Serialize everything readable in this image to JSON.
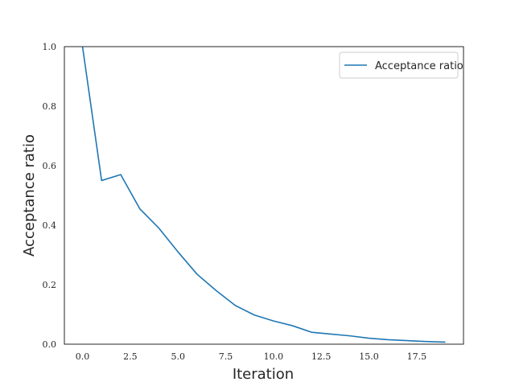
{
  "chart_data": {
    "type": "line",
    "title": "",
    "xlabel": "Iteration",
    "ylabel": "Acceptance ratio",
    "xlim": [
      -0.95,
      19.95
    ],
    "ylim": [
      0.0,
      1.0
    ],
    "xticks": [
      0.0,
      2.5,
      5.0,
      7.5,
      10.0,
      12.5,
      15.0,
      17.5
    ],
    "xtick_labels": [
      "0.0",
      "2.5",
      "5.0",
      "7.5",
      "10.0",
      "12.5",
      "15.0",
      "17.5"
    ],
    "yticks": [
      0.0,
      0.2,
      0.4,
      0.6,
      0.8,
      1.0
    ],
    "ytick_labels": [
      "0.0",
      "0.2",
      "0.4",
      "0.6",
      "0.8",
      "1.0"
    ],
    "grid": false,
    "legend_position": "top-right",
    "series": [
      {
        "name": "Acceptance ratio",
        "color": "#1f77b4",
        "x": [
          0,
          1,
          2,
          3,
          4,
          5,
          6,
          7,
          8,
          9,
          10,
          11,
          12,
          13,
          14,
          15,
          16,
          17,
          18,
          19
        ],
        "y": [
          1.0,
          0.55,
          0.57,
          0.455,
          0.39,
          0.31,
          0.235,
          0.18,
          0.13,
          0.098,
          0.078,
          0.062,
          0.04,
          0.034,
          0.028,
          0.02,
          0.015,
          0.012,
          0.009,
          0.007
        ]
      }
    ]
  }
}
